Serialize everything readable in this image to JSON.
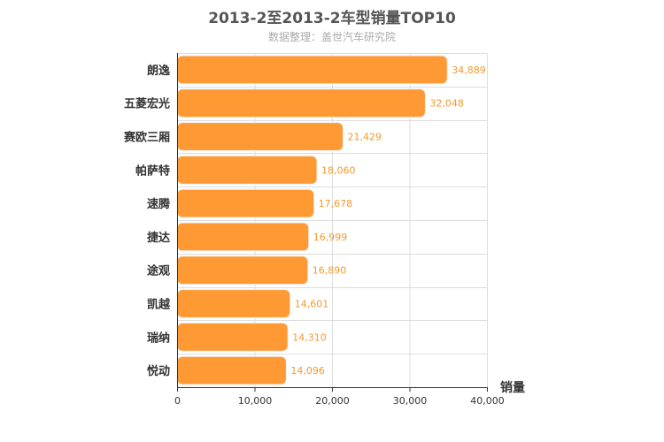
{
  "chart_data": {
    "type": "bar",
    "orientation": "horizontal",
    "title": "2013-2至2013-2车型销量TOP10",
    "subtitle": "数据整理：盖世汽车研究院",
    "categories": [
      "朗逸",
      "五菱宏光",
      "赛欧三厢",
      "帕萨特",
      "速腾",
      "捷达",
      "途观",
      "凯越",
      "瑞纳",
      "悦动"
    ],
    "values": [
      34889,
      32048,
      21429,
      18060,
      17678,
      16999,
      16890,
      14601,
      14310,
      14096
    ],
    "value_labels": [
      "34,889",
      "32,048",
      "21,429",
      "18,060",
      "17,678",
      "16,999",
      "16,890",
      "14,601",
      "14,310",
      "14,096"
    ],
    "xlabel": "销量",
    "ylabel": "",
    "xlim": [
      0,
      40000
    ],
    "xticks": [
      0,
      10000,
      20000,
      30000,
      40000
    ],
    "xtick_labels": [
      "0",
      "10,000",
      "20,000",
      "30,000",
      "40,000"
    ],
    "grid": true,
    "colors": {
      "bar": "#ff9933",
      "bar_stroke": "#f0f0f0",
      "grid": "#dddddd",
      "axis": "#333333",
      "data_label": "#f39a2e"
    }
  }
}
